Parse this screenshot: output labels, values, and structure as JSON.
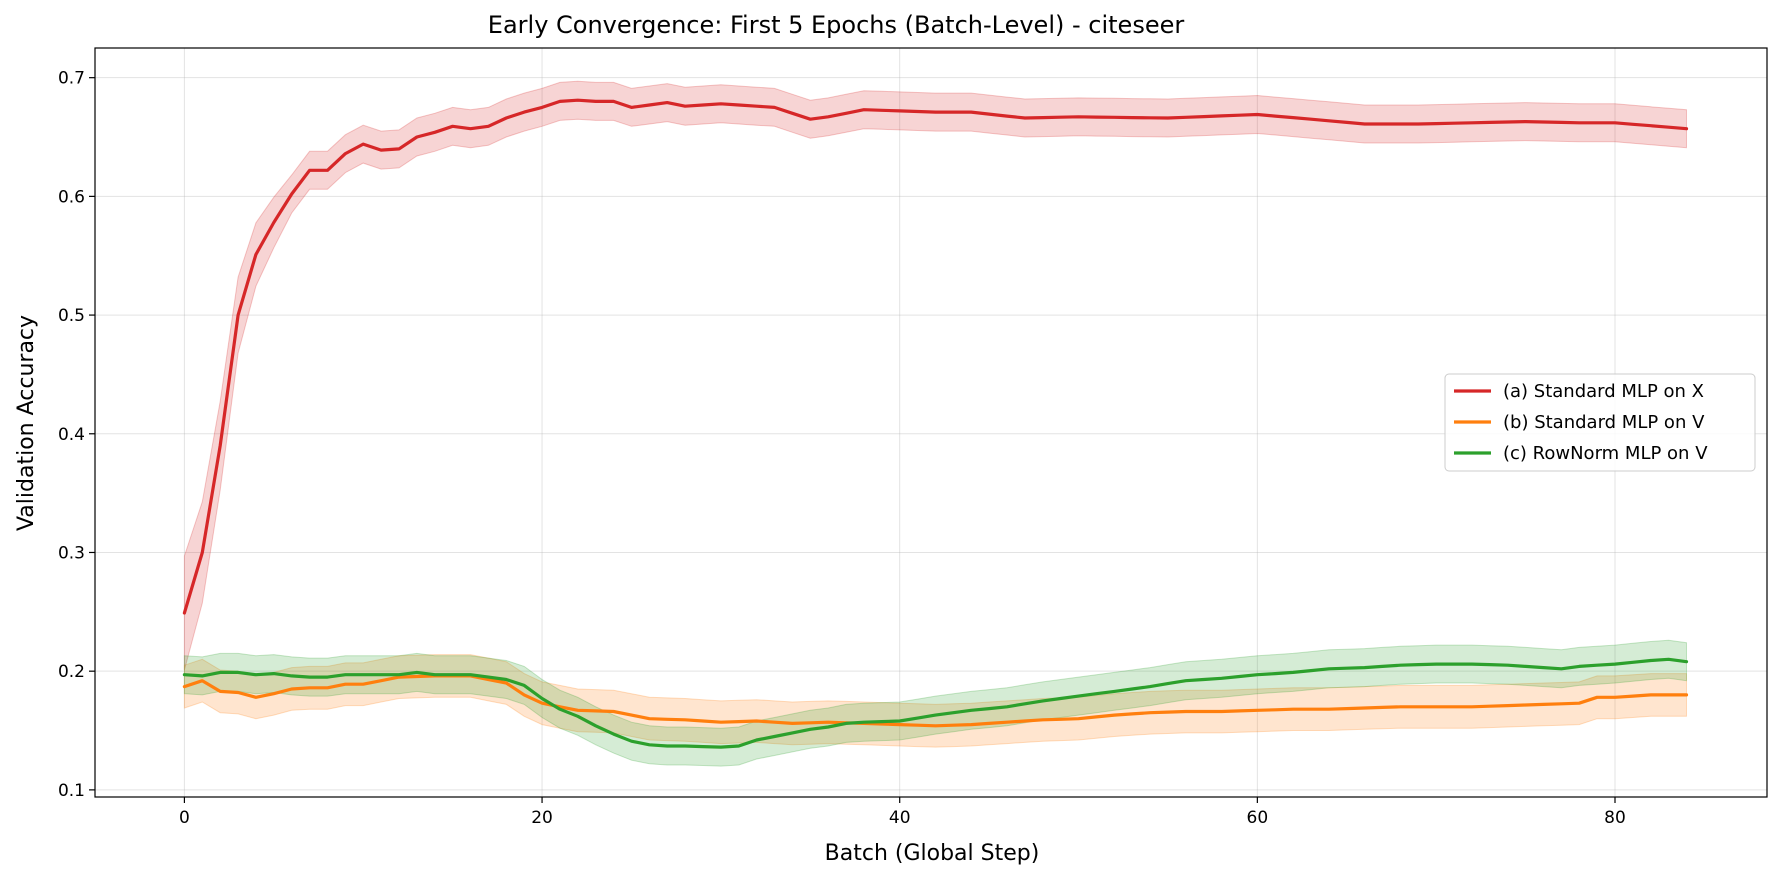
{
  "chart_data": {
    "type": "line",
    "title": "Early Convergence: First 5 Epochs (Batch-Level) - citeseer",
    "xlabel": "Batch (Global Step)",
    "ylabel": "Validation Accuracy",
    "xlim": [
      -5,
      88.5
    ],
    "ylim": [
      0.094,
      0.725
    ],
    "xticks": [
      0,
      20,
      40,
      60,
      80
    ],
    "yticks": [
      0.1,
      0.2,
      0.3,
      0.4,
      0.5,
      0.6,
      0.7
    ],
    "grid": true,
    "legend_position": "center-right",
    "shaded_band": "variability band around each series",
    "series": [
      {
        "name": "(a) Standard MLP on X",
        "color": "#d62728",
        "x_anchors": [
          0,
          1,
          2,
          3,
          4,
          5,
          6,
          7,
          8,
          9,
          10,
          11,
          12,
          13,
          14,
          15,
          16,
          17,
          18,
          19,
          20,
          21,
          22,
          23,
          24,
          25,
          27,
          28,
          30,
          33,
          35,
          36,
          38,
          42,
          44,
          47,
          50,
          55,
          60,
          63,
          66,
          69,
          72,
          75,
          78,
          80,
          84
        ],
        "y_anchors": [
          0.249,
          0.3,
          0.39,
          0.5,
          0.551,
          0.578,
          0.602,
          0.622,
          0.622,
          0.636,
          0.644,
          0.639,
          0.64,
          0.65,
          0.654,
          0.659,
          0.657,
          0.659,
          0.666,
          0.671,
          0.675,
          0.68,
          0.681,
          0.68,
          0.68,
          0.675,
          0.679,
          0.676,
          0.678,
          0.675,
          0.665,
          0.667,
          0.673,
          0.671,
          0.671,
          0.666,
          0.667,
          0.666,
          0.669,
          0.665,
          0.661,
          0.661,
          0.662,
          0.663,
          0.662,
          0.662,
          0.657
        ],
        "band_width": 0.016,
        "band_width_start": 0.048
      },
      {
        "name": "(b) Standard MLP on V",
        "color": "#ff7f0e",
        "x_anchors": [
          0,
          1,
          2,
          3,
          4,
          5,
          6,
          7,
          8,
          9,
          10,
          12,
          14,
          16,
          18,
          19,
          20,
          22,
          24,
          26,
          28,
          30,
          32,
          34,
          36,
          38,
          40,
          42,
          44,
          46,
          48,
          50,
          52,
          54,
          56,
          58,
          60,
          62,
          64,
          66,
          68,
          70,
          72,
          74,
          76,
          78,
          79,
          80,
          82,
          84
        ],
        "y_anchors": [
          0.187,
          0.192,
          0.183,
          0.182,
          0.178,
          0.181,
          0.185,
          0.186,
          0.186,
          0.189,
          0.189,
          0.195,
          0.196,
          0.196,
          0.19,
          0.18,
          0.173,
          0.167,
          0.166,
          0.16,
          0.159,
          0.157,
          0.158,
          0.156,
          0.157,
          0.156,
          0.155,
          0.154,
          0.155,
          0.157,
          0.159,
          0.16,
          0.163,
          0.165,
          0.166,
          0.166,
          0.167,
          0.168,
          0.168,
          0.169,
          0.17,
          0.17,
          0.17,
          0.171,
          0.172,
          0.173,
          0.178,
          0.178,
          0.18,
          0.18
        ],
        "band_width": 0.018
      },
      {
        "name": "(c) RowNorm MLP on V",
        "color": "#2ca02c",
        "x_anchors": [
          0,
          1,
          2,
          3,
          4,
          5,
          6,
          7,
          8,
          9,
          10,
          12,
          13,
          14,
          16,
          17,
          18,
          19,
          20,
          21,
          22,
          23,
          24,
          25,
          26,
          27,
          28,
          30,
          31,
          32,
          33,
          34,
          35,
          36,
          37,
          38,
          40,
          42,
          44,
          46,
          48,
          50,
          52,
          54,
          56,
          58,
          60,
          62,
          64,
          66,
          68,
          70,
          72,
          74,
          76,
          77,
          78,
          80,
          82,
          83,
          84
        ],
        "y_anchors": [
          0.197,
          0.196,
          0.199,
          0.199,
          0.197,
          0.198,
          0.196,
          0.195,
          0.195,
          0.197,
          0.197,
          0.197,
          0.199,
          0.197,
          0.197,
          0.195,
          0.193,
          0.188,
          0.177,
          0.168,
          0.162,
          0.154,
          0.147,
          0.141,
          0.138,
          0.137,
          0.137,
          0.136,
          0.137,
          0.142,
          0.145,
          0.148,
          0.151,
          0.153,
          0.156,
          0.157,
          0.158,
          0.163,
          0.167,
          0.17,
          0.175,
          0.179,
          0.183,
          0.187,
          0.192,
          0.194,
          0.197,
          0.199,
          0.202,
          0.203,
          0.205,
          0.206,
          0.206,
          0.205,
          0.203,
          0.202,
          0.204,
          0.206,
          0.209,
          0.21,
          0.208
        ],
        "band_width": 0.016
      }
    ]
  }
}
